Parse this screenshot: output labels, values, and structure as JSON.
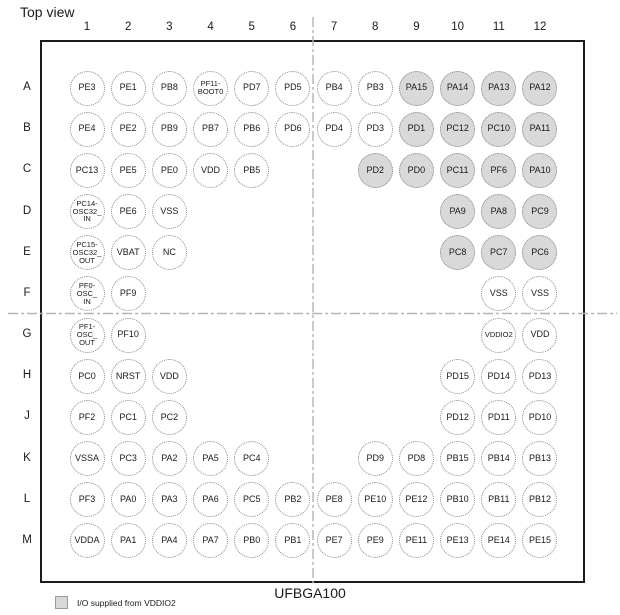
{
  "title": "Top view",
  "package_label": "UFBGA100",
  "legend": {
    "label": "I/O supplied from VDDIO2",
    "swatch_color": "#d9d9d9"
  },
  "colors": {
    "shaded_fill": "#d9d9d9",
    "ball_border": "#858585",
    "frame": "#1c1c1c",
    "crosshair": "#b3b3b3"
  },
  "columns": [
    "1",
    "2",
    "3",
    "4",
    "5",
    "6",
    "7",
    "8",
    "9",
    "10",
    "11",
    "12"
  ],
  "rows": [
    "A",
    "B",
    "C",
    "D",
    "E",
    "F",
    "G",
    "H",
    "J",
    "K",
    "L",
    "M"
  ],
  "balls": [
    {
      "row": "A",
      "col": 1,
      "label": "PE3",
      "vddio2": false
    },
    {
      "row": "A",
      "col": 2,
      "label": "PE1",
      "vddio2": false
    },
    {
      "row": "A",
      "col": 3,
      "label": "PB8",
      "vddio2": false
    },
    {
      "row": "A",
      "col": 4,
      "label": "PF11-\nBOOT0",
      "vddio2": false
    },
    {
      "row": "A",
      "col": 5,
      "label": "PD7",
      "vddio2": false
    },
    {
      "row": "A",
      "col": 6,
      "label": "PD5",
      "vddio2": false
    },
    {
      "row": "A",
      "col": 7,
      "label": "PB4",
      "vddio2": false
    },
    {
      "row": "A",
      "col": 8,
      "label": "PB3",
      "vddio2": false
    },
    {
      "row": "A",
      "col": 9,
      "label": "PA15",
      "vddio2": true
    },
    {
      "row": "A",
      "col": 10,
      "label": "PA14",
      "vddio2": true
    },
    {
      "row": "A",
      "col": 11,
      "label": "PA13",
      "vddio2": true
    },
    {
      "row": "A",
      "col": 12,
      "label": "PA12",
      "vddio2": true
    },
    {
      "row": "B",
      "col": 1,
      "label": "PE4",
      "vddio2": false
    },
    {
      "row": "B",
      "col": 2,
      "label": "PE2",
      "vddio2": false
    },
    {
      "row": "B",
      "col": 3,
      "label": "PB9",
      "vddio2": false
    },
    {
      "row": "B",
      "col": 4,
      "label": "PB7",
      "vddio2": false
    },
    {
      "row": "B",
      "col": 5,
      "label": "PB6",
      "vddio2": false
    },
    {
      "row": "B",
      "col": 6,
      "label": "PD6",
      "vddio2": false
    },
    {
      "row": "B",
      "col": 7,
      "label": "PD4",
      "vddio2": false
    },
    {
      "row": "B",
      "col": 8,
      "label": "PD3",
      "vddio2": false
    },
    {
      "row": "B",
      "col": 9,
      "label": "PD1",
      "vddio2": true
    },
    {
      "row": "B",
      "col": 10,
      "label": "PC12",
      "vddio2": true
    },
    {
      "row": "B",
      "col": 11,
      "label": "PC10",
      "vddio2": true
    },
    {
      "row": "B",
      "col": 12,
      "label": "PA11",
      "vddio2": true
    },
    {
      "row": "C",
      "col": 1,
      "label": "PC13",
      "vddio2": false
    },
    {
      "row": "C",
      "col": 2,
      "label": "PE5",
      "vddio2": false
    },
    {
      "row": "C",
      "col": 3,
      "label": "PE0",
      "vddio2": false
    },
    {
      "row": "C",
      "col": 4,
      "label": "VDD",
      "vddio2": false
    },
    {
      "row": "C",
      "col": 5,
      "label": "PB5",
      "vddio2": false
    },
    {
      "row": "C",
      "col": 8,
      "label": "PD2",
      "vddio2": true
    },
    {
      "row": "C",
      "col": 9,
      "label": "PD0",
      "vddio2": true
    },
    {
      "row": "C",
      "col": 10,
      "label": "PC11",
      "vddio2": true
    },
    {
      "row": "C",
      "col": 11,
      "label": "PF6",
      "vddio2": true
    },
    {
      "row": "C",
      "col": 12,
      "label": "PA10",
      "vddio2": true
    },
    {
      "row": "D",
      "col": 1,
      "label": "PC14-\nOSC32_\nIN",
      "vddio2": false
    },
    {
      "row": "D",
      "col": 2,
      "label": "PE6",
      "vddio2": false
    },
    {
      "row": "D",
      "col": 3,
      "label": "VSS",
      "vddio2": false
    },
    {
      "row": "D",
      "col": 10,
      "label": "PA9",
      "vddio2": true
    },
    {
      "row": "D",
      "col": 11,
      "label": "PA8",
      "vddio2": true
    },
    {
      "row": "D",
      "col": 12,
      "label": "PC9",
      "vddio2": true
    },
    {
      "row": "E",
      "col": 1,
      "label": "PC15-\nOSC32_\nOUT",
      "vddio2": false
    },
    {
      "row": "E",
      "col": 2,
      "label": "VBAT",
      "vddio2": false
    },
    {
      "row": "E",
      "col": 3,
      "label": "NC",
      "vddio2": false
    },
    {
      "row": "E",
      "col": 10,
      "label": "PC8",
      "vddio2": true
    },
    {
      "row": "E",
      "col": 11,
      "label": "PC7",
      "vddio2": true
    },
    {
      "row": "E",
      "col": 12,
      "label": "PC6",
      "vddio2": true
    },
    {
      "row": "F",
      "col": 1,
      "label": "PF0-\nOSC_\nIN",
      "vddio2": false
    },
    {
      "row": "F",
      "col": 2,
      "label": "PF9",
      "vddio2": false
    },
    {
      "row": "F",
      "col": 11,
      "label": "VSS",
      "vddio2": false
    },
    {
      "row": "F",
      "col": 12,
      "label": "VSS",
      "vddio2": false
    },
    {
      "row": "G",
      "col": 1,
      "label": "PF1-\nOSC_\nOUT",
      "vddio2": false
    },
    {
      "row": "G",
      "col": 2,
      "label": "PF10",
      "vddio2": false
    },
    {
      "row": "G",
      "col": 11,
      "label": "VDDIO2",
      "vddio2": false
    },
    {
      "row": "G",
      "col": 12,
      "label": "VDD",
      "vddio2": false
    },
    {
      "row": "H",
      "col": 1,
      "label": "PC0",
      "vddio2": false
    },
    {
      "row": "H",
      "col": 2,
      "label": "NRST",
      "vddio2": false
    },
    {
      "row": "H",
      "col": 3,
      "label": "VDD",
      "vddio2": false
    },
    {
      "row": "H",
      "col": 10,
      "label": "PD15",
      "vddio2": false
    },
    {
      "row": "H",
      "col": 11,
      "label": "PD14",
      "vddio2": false
    },
    {
      "row": "H",
      "col": 12,
      "label": "PD13",
      "vddio2": false
    },
    {
      "row": "J",
      "col": 1,
      "label": "PF2",
      "vddio2": false
    },
    {
      "row": "J",
      "col": 2,
      "label": "PC1",
      "vddio2": false
    },
    {
      "row": "J",
      "col": 3,
      "label": "PC2",
      "vddio2": false
    },
    {
      "row": "J",
      "col": 10,
      "label": "PD12",
      "vddio2": false
    },
    {
      "row": "J",
      "col": 11,
      "label": "PD11",
      "vddio2": false
    },
    {
      "row": "J",
      "col": 12,
      "label": "PD10",
      "vddio2": false
    },
    {
      "row": "K",
      "col": 1,
      "label": "VSSA",
      "vddio2": false
    },
    {
      "row": "K",
      "col": 2,
      "label": "PC3",
      "vddio2": false
    },
    {
      "row": "K",
      "col": 3,
      "label": "PA2",
      "vddio2": false
    },
    {
      "row": "K",
      "col": 4,
      "label": "PA5",
      "vddio2": false
    },
    {
      "row": "K",
      "col": 5,
      "label": "PC4",
      "vddio2": false
    },
    {
      "row": "K",
      "col": 8,
      "label": "PD9",
      "vddio2": false
    },
    {
      "row": "K",
      "col": 9,
      "label": "PD8",
      "vddio2": false
    },
    {
      "row": "K",
      "col": 10,
      "label": "PB15",
      "vddio2": false
    },
    {
      "row": "K",
      "col": 11,
      "label": "PB14",
      "vddio2": false
    },
    {
      "row": "K",
      "col": 12,
      "label": "PB13",
      "vddio2": false
    },
    {
      "row": "L",
      "col": 1,
      "label": "PF3",
      "vddio2": false
    },
    {
      "row": "L",
      "col": 2,
      "label": "PA0",
      "vddio2": false
    },
    {
      "row": "L",
      "col": 3,
      "label": "PA3",
      "vddio2": false
    },
    {
      "row": "L",
      "col": 4,
      "label": "PA6",
      "vddio2": false
    },
    {
      "row": "L",
      "col": 5,
      "label": "PC5",
      "vddio2": false
    },
    {
      "row": "L",
      "col": 6,
      "label": "PB2",
      "vddio2": false
    },
    {
      "row": "L",
      "col": 7,
      "label": "PE8",
      "vddio2": false
    },
    {
      "row": "L",
      "col": 8,
      "label": "PE10",
      "vddio2": false
    },
    {
      "row": "L",
      "col": 9,
      "label": "PE12",
      "vddio2": false
    },
    {
      "row": "L",
      "col": 10,
      "label": "PB10",
      "vddio2": false
    },
    {
      "row": "L",
      "col": 11,
      "label": "PB11",
      "vddio2": false
    },
    {
      "row": "L",
      "col": 12,
      "label": "PB12",
      "vddio2": false
    },
    {
      "row": "M",
      "col": 1,
      "label": "VDDA",
      "vddio2": false
    },
    {
      "row": "M",
      "col": 2,
      "label": "PA1",
      "vddio2": false
    },
    {
      "row": "M",
      "col": 3,
      "label": "PA4",
      "vddio2": false
    },
    {
      "row": "M",
      "col": 4,
      "label": "PA7",
      "vddio2": false
    },
    {
      "row": "M",
      "col": 5,
      "label": "PB0",
      "vddio2": false
    },
    {
      "row": "M",
      "col": 6,
      "label": "PB1",
      "vddio2": false
    },
    {
      "row": "M",
      "col": 7,
      "label": "PE7",
      "vddio2": false
    },
    {
      "row": "M",
      "col": 8,
      "label": "PE9",
      "vddio2": false
    },
    {
      "row": "M",
      "col": 9,
      "label": "PE11",
      "vddio2": false
    },
    {
      "row": "M",
      "col": 10,
      "label": "PE13",
      "vddio2": false
    },
    {
      "row": "M",
      "col": 11,
      "label": "PE14",
      "vddio2": false
    },
    {
      "row": "M",
      "col": 12,
      "label": "PE15",
      "vddio2": false
    }
  ]
}
